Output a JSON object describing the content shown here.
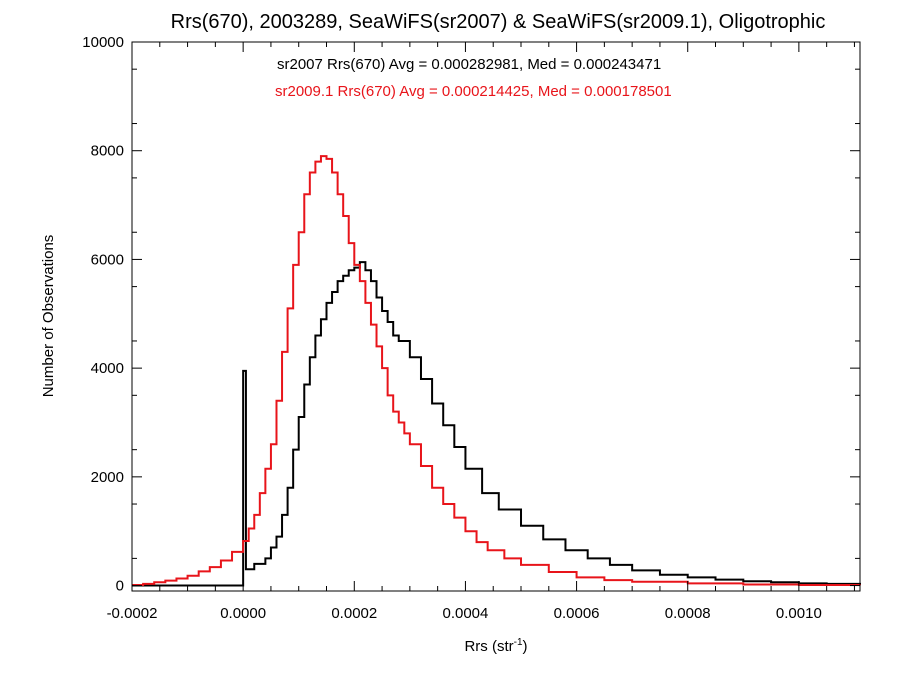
{
  "chart_data": {
    "type": "line",
    "title": "Rrs(670), 2003289, SeaWiFS(sr2007) & SeaWiFS(sr2009.1), Oligotrophic",
    "xlabel": "Rrs (str",
    "xlabel_sup": "-1",
    "xlabel_end": ")",
    "ylabel": "Number of Observations",
    "xlim": [
      -0.0002,
      0.00111
    ],
    "ylim": [
      -100,
      10000
    ],
    "xticks": [
      -0.0002,
      0.0,
      0.0002,
      0.0004,
      0.0006,
      0.0008,
      0.001
    ],
    "xtick_labels": [
      "-0.0002",
      "0.0000",
      "0.0002",
      "0.0004",
      "0.0006",
      "0.0008",
      "0.0010"
    ],
    "yticks": [
      0,
      2000,
      4000,
      6000,
      8000,
      10000
    ],
    "ytick_labels": [
      "0",
      "2000",
      "4000",
      "6000",
      "8000",
      "10000"
    ],
    "annotations": [
      {
        "text": "sr2007 Rrs(670) Avg = 0.000282981, Med = 0.000243471",
        "color": "#000000"
      },
      {
        "text": "sr2009.1 Rrs(670) Avg = 0.000214425, Med = 0.000178501",
        "color": "#e8141a"
      }
    ],
    "series": [
      {
        "name": "sr2007",
        "color": "#000000",
        "x": [
          -0.0002,
          -1e-05,
          0.0,
          5e-06,
          2e-05,
          4e-05,
          5e-05,
          6e-05,
          7e-05,
          8e-05,
          9e-05,
          0.0001,
          0.00011,
          0.00012,
          0.00013,
          0.00014,
          0.00015,
          0.00016,
          0.00017,
          0.00018,
          0.00019,
          0.0002,
          0.00021,
          0.00022,
          0.00023,
          0.00024,
          0.00025,
          0.00026,
          0.00027,
          0.00028,
          0.0003,
          0.00032,
          0.00034,
          0.00036,
          0.00038,
          0.0004,
          0.00043,
          0.00046,
          0.0005,
          0.00054,
          0.00058,
          0.00062,
          0.00066,
          0.0007,
          0.00075,
          0.0008,
          0.00085,
          0.0009,
          0.00095,
          0.001,
          0.00105,
          0.00111
        ],
        "y": [
          0,
          0,
          3950,
          300,
          400,
          500,
          700,
          900,
          1300,
          1800,
          2500,
          3100,
          3700,
          4200,
          4600,
          4900,
          5200,
          5400,
          5600,
          5700,
          5800,
          5850,
          5950,
          5800,
          5600,
          5300,
          5050,
          4850,
          4600,
          4500,
          4200,
          3800,
          3350,
          2950,
          2550,
          2150,
          1700,
          1400,
          1100,
          850,
          650,
          500,
          380,
          280,
          200,
          150,
          110,
          80,
          60,
          40,
          30,
          20
        ]
      },
      {
        "name": "sr2009.1",
        "color": "#e8141a",
        "x": [
          -0.0002,
          -0.00018,
          -0.00016,
          -0.00014,
          -0.00012,
          -0.0001,
          -8e-05,
          -6e-05,
          -4e-05,
          -2e-05,
          0.0,
          1e-05,
          2e-05,
          3e-05,
          4e-05,
          5e-05,
          6e-05,
          7e-05,
          8e-05,
          9e-05,
          0.0001,
          0.00011,
          0.00012,
          0.00013,
          0.00014,
          0.00015,
          0.00016,
          0.00017,
          0.00018,
          0.00019,
          0.0002,
          0.00021,
          0.00022,
          0.00023,
          0.00024,
          0.00025,
          0.00026,
          0.00027,
          0.00028,
          0.00029,
          0.0003,
          0.00032,
          0.00034,
          0.00036,
          0.00038,
          0.0004,
          0.00042,
          0.00044,
          0.00047,
          0.0005,
          0.00055,
          0.0006,
          0.00065,
          0.0007,
          0.0008,
          0.0009,
          0.001,
          0.00111
        ],
        "y": [
          10,
          30,
          60,
          90,
          130,
          180,
          260,
          340,
          460,
          620,
          820,
          1050,
          1300,
          1700,
          2150,
          2600,
          3400,
          4300,
          5100,
          5900,
          6500,
          7200,
          7600,
          7800,
          7900,
          7850,
          7600,
          7200,
          6800,
          6300,
          5900,
          5600,
          5200,
          4800,
          4400,
          4000,
          3500,
          3200,
          3000,
          2800,
          2600,
          2200,
          1800,
          1500,
          1250,
          1000,
          800,
          650,
          500,
          380,
          250,
          150,
          100,
          70,
          40,
          20,
          10,
          5
        ]
      }
    ]
  }
}
